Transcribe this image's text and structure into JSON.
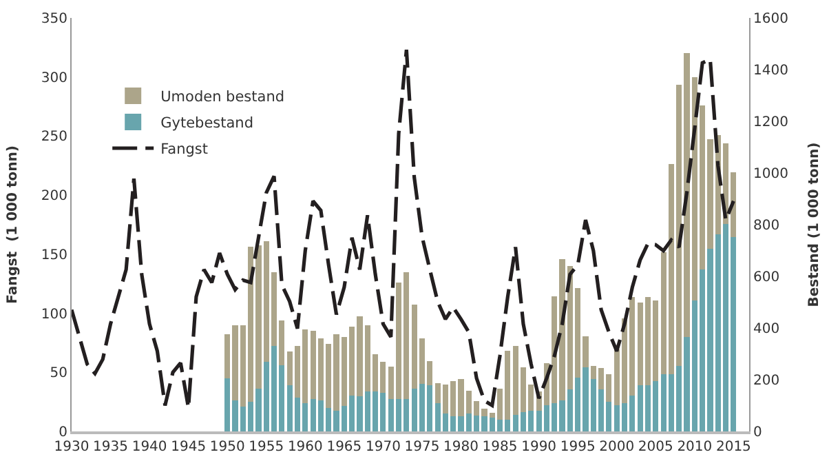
{
  "chart_data": {
    "type": "bar",
    "stacked": true,
    "ylabel": "Fangst  (1 000 tonn)",
    "y2label": "Bestand (1 000 tonn)",
    "xlim": [
      1930,
      2017
    ],
    "xticks": [
      1930,
      1935,
      1940,
      1945,
      1950,
      1955,
      1960,
      1965,
      1970,
      1975,
      1980,
      1985,
      1990,
      1995,
      2000,
      2005,
      2010,
      2015
    ],
    "ylim": [
      0,
      350
    ],
    "yticks": [
      0,
      50,
      100,
      150,
      200,
      250,
      300,
      350
    ],
    "y2lim": [
      0,
      1600
    ],
    "y2ticks": [
      0,
      200,
      400,
      600,
      800,
      1000,
      1200,
      1400,
      1600
    ],
    "legend": "top left",
    "series": [
      {
        "name": "Gytebestand",
        "axis": "y2",
        "color": "#68a5ad",
        "x": [
          1950,
          1951,
          1952,
          1953,
          1954,
          1955,
          1956,
          1957,
          1958,
          1959,
          1960,
          1961,
          1962,
          1963,
          1964,
          1965,
          1966,
          1967,
          1968,
          1969,
          1970,
          1971,
          1972,
          1973,
          1974,
          1975,
          1976,
          1977,
          1978,
          1979,
          1980,
          1981,
          1982,
          1983,
          1984,
          1985,
          1986,
          1987,
          1988,
          1989,
          1990,
          1991,
          1992,
          1993,
          1994,
          1995,
          1996,
          1997,
          1998,
          1999,
          2000,
          2001,
          2002,
          2003,
          2004,
          2005,
          2006,
          2007,
          2008,
          2009,
          2010,
          2011,
          2012,
          2013,
          2014,
          2015
        ],
        "values": [
          205,
          120,
          95,
          115,
          165,
          270,
          330,
          255,
          180,
          130,
          110,
          125,
          120,
          90,
          80,
          100,
          140,
          135,
          155,
          155,
          150,
          125,
          125,
          125,
          165,
          185,
          180,
          110,
          70,
          58,
          58,
          70,
          61,
          58,
          53,
          46,
          46,
          63,
          75,
          81,
          81,
          102,
          110,
          119,
          163,
          207,
          249,
          203,
          163,
          116,
          102,
          110,
          140,
          179,
          179,
          196,
          221,
          221,
          254,
          365,
          508,
          627,
          706,
          762,
          803,
          753
        ]
      },
      {
        "name": "Umoden bestand",
        "axis": "y2",
        "color": "#aca58a",
        "x": [
          1950,
          1951,
          1952,
          1953,
          1954,
          1955,
          1956,
          1957,
          1958,
          1959,
          1960,
          1961,
          1962,
          1963,
          1964,
          1965,
          1966,
          1967,
          1968,
          1969,
          1970,
          1971,
          1972,
          1973,
          1974,
          1975,
          1976,
          1977,
          1978,
          1979,
          1980,
          1981,
          1982,
          1983,
          1984,
          1985,
          1986,
          1987,
          1988,
          1989,
          1990,
          1991,
          1992,
          1993,
          1994,
          1995,
          1996,
          1997,
          1998,
          1999,
          2000,
          2001,
          2002,
          2003,
          2004,
          2005,
          2006,
          2007,
          2008,
          2009,
          2010,
          2011,
          2012,
          2013,
          2014,
          2015
        ],
        "values": [
          170,
          290,
          315,
          600,
          555,
          465,
          285,
          175,
          130,
          200,
          285,
          265,
          240,
          250,
          295,
          265,
          265,
          310,
          255,
          145,
          120,
          125,
          450,
          490,
          325,
          175,
          92,
          78,
          112,
          138,
          145,
          88,
          56,
          31,
          19,
          120,
          266,
          267,
          174,
          101,
          73,
          161,
          412,
          549,
          478,
          347,
          119,
          51,
          82,
          105,
          215,
          328,
          380,
          321,
          340,
          312,
          473,
          813,
          1088,
          1100,
          864,
          635,
          424,
          386,
          312,
          251
        ]
      },
      {
        "name": "Fangst",
        "type": "line",
        "color": "#231f20",
        "line_style": "dashed",
        "x": [
          1930,
          1932,
          1933,
          1934,
          1935,
          1937,
          1938,
          1939,
          1940,
          1941,
          1942,
          1943,
          1944,
          1945,
          1946,
          1947,
          1948,
          1949,
          1950,
          1951,
          1952,
          1953,
          1954,
          1955,
          1956,
          1957,
          1958,
          1959,
          1960,
          1961,
          1962,
          1963,
          1964,
          1965,
          1966,
          1967,
          1968,
          1969,
          1970,
          1971,
          1972,
          1973,
          1974,
          1975,
          1976,
          1977,
          1978,
          1979,
          1980,
          1981,
          1982,
          1983,
          1984,
          1985,
          1986,
          1987,
          1988,
          1989,
          1990,
          1991,
          1992,
          1993,
          1994,
          1995,
          1996,
          1997,
          1998,
          1999,
          2000,
          2001,
          2002,
          2003,
          2004,
          2005,
          2006,
          2007,
          2008,
          2009,
          2010,
          2011,
          2012,
          2013,
          2014,
          2015
        ],
        "values": [
          103,
          57,
          49,
          61,
          91,
          137,
          214,
          133,
          91,
          68,
          22,
          50,
          58,
          20,
          114,
          137,
          126,
          151,
          133,
          120,
          128,
          126,
          164,
          202,
          216,
          124,
          110,
          87,
          153,
          195,
          187,
          141,
          99,
          122,
          164,
          137,
          183,
          133,
          91,
          80,
          252,
          323,
          215,
          165,
          137,
          110,
          95,
          105,
          95,
          84,
          45,
          26,
          22,
          64,
          114,
          156,
          91,
          57,
          28,
          45,
          64,
          91,
          133,
          141,
          179,
          153,
          103,
          84,
          68,
          91,
          122,
          145,
          159,
          158,
          153,
          162,
          156,
          202,
          256,
          312,
          315,
          225,
          179,
          195
        ]
      }
    ]
  }
}
